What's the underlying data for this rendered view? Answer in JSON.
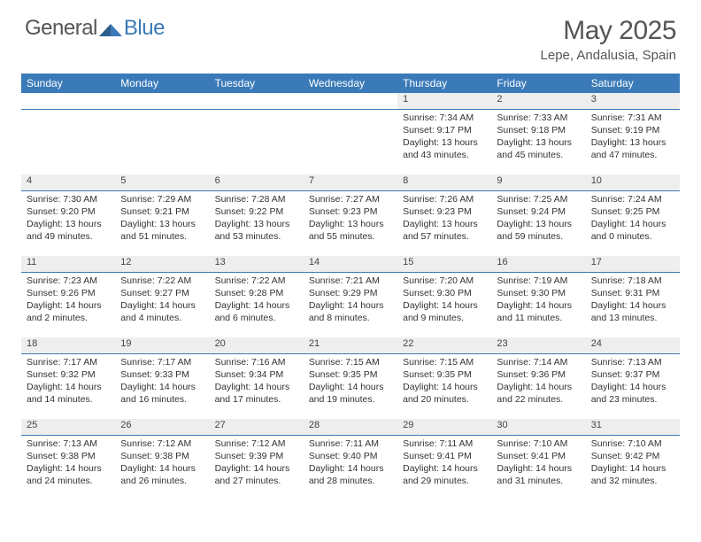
{
  "brand": {
    "part1": "General",
    "part2": "Blue"
  },
  "title": "May 2025",
  "location": "Lepe, Andalusia, Spain",
  "colors": {
    "header_bg": "#3a7ab8",
    "header_text": "#ffffff",
    "daynum_bg": "#eeeeee",
    "divider": "#3a7ab8",
    "body_text": "#333333",
    "title_text": "#555555"
  },
  "weekday_labels": [
    "Sunday",
    "Monday",
    "Tuesday",
    "Wednesday",
    "Thursday",
    "Friday",
    "Saturday"
  ],
  "weeks": [
    [
      {
        "blank": true
      },
      {
        "blank": true
      },
      {
        "blank": true
      },
      {
        "blank": true
      },
      {
        "day": "1",
        "sunrise": "Sunrise: 7:34 AM",
        "sunset": "Sunset: 9:17 PM",
        "daylight": "Daylight: 13 hours and 43 minutes."
      },
      {
        "day": "2",
        "sunrise": "Sunrise: 7:33 AM",
        "sunset": "Sunset: 9:18 PM",
        "daylight": "Daylight: 13 hours and 45 minutes."
      },
      {
        "day": "3",
        "sunrise": "Sunrise: 7:31 AM",
        "sunset": "Sunset: 9:19 PM",
        "daylight": "Daylight: 13 hours and 47 minutes."
      }
    ],
    [
      {
        "day": "4",
        "sunrise": "Sunrise: 7:30 AM",
        "sunset": "Sunset: 9:20 PM",
        "daylight": "Daylight: 13 hours and 49 minutes."
      },
      {
        "day": "5",
        "sunrise": "Sunrise: 7:29 AM",
        "sunset": "Sunset: 9:21 PM",
        "daylight": "Daylight: 13 hours and 51 minutes."
      },
      {
        "day": "6",
        "sunrise": "Sunrise: 7:28 AM",
        "sunset": "Sunset: 9:22 PM",
        "daylight": "Daylight: 13 hours and 53 minutes."
      },
      {
        "day": "7",
        "sunrise": "Sunrise: 7:27 AM",
        "sunset": "Sunset: 9:23 PM",
        "daylight": "Daylight: 13 hours and 55 minutes."
      },
      {
        "day": "8",
        "sunrise": "Sunrise: 7:26 AM",
        "sunset": "Sunset: 9:23 PM",
        "daylight": "Daylight: 13 hours and 57 minutes."
      },
      {
        "day": "9",
        "sunrise": "Sunrise: 7:25 AM",
        "sunset": "Sunset: 9:24 PM",
        "daylight": "Daylight: 13 hours and 59 minutes."
      },
      {
        "day": "10",
        "sunrise": "Sunrise: 7:24 AM",
        "sunset": "Sunset: 9:25 PM",
        "daylight": "Daylight: 14 hours and 0 minutes."
      }
    ],
    [
      {
        "day": "11",
        "sunrise": "Sunrise: 7:23 AM",
        "sunset": "Sunset: 9:26 PM",
        "daylight": "Daylight: 14 hours and 2 minutes."
      },
      {
        "day": "12",
        "sunrise": "Sunrise: 7:22 AM",
        "sunset": "Sunset: 9:27 PM",
        "daylight": "Daylight: 14 hours and 4 minutes."
      },
      {
        "day": "13",
        "sunrise": "Sunrise: 7:22 AM",
        "sunset": "Sunset: 9:28 PM",
        "daylight": "Daylight: 14 hours and 6 minutes."
      },
      {
        "day": "14",
        "sunrise": "Sunrise: 7:21 AM",
        "sunset": "Sunset: 9:29 PM",
        "daylight": "Daylight: 14 hours and 8 minutes."
      },
      {
        "day": "15",
        "sunrise": "Sunrise: 7:20 AM",
        "sunset": "Sunset: 9:30 PM",
        "daylight": "Daylight: 14 hours and 9 minutes."
      },
      {
        "day": "16",
        "sunrise": "Sunrise: 7:19 AM",
        "sunset": "Sunset: 9:30 PM",
        "daylight": "Daylight: 14 hours and 11 minutes."
      },
      {
        "day": "17",
        "sunrise": "Sunrise: 7:18 AM",
        "sunset": "Sunset: 9:31 PM",
        "daylight": "Daylight: 14 hours and 13 minutes."
      }
    ],
    [
      {
        "day": "18",
        "sunrise": "Sunrise: 7:17 AM",
        "sunset": "Sunset: 9:32 PM",
        "daylight": "Daylight: 14 hours and 14 minutes."
      },
      {
        "day": "19",
        "sunrise": "Sunrise: 7:17 AM",
        "sunset": "Sunset: 9:33 PM",
        "daylight": "Daylight: 14 hours and 16 minutes."
      },
      {
        "day": "20",
        "sunrise": "Sunrise: 7:16 AM",
        "sunset": "Sunset: 9:34 PM",
        "daylight": "Daylight: 14 hours and 17 minutes."
      },
      {
        "day": "21",
        "sunrise": "Sunrise: 7:15 AM",
        "sunset": "Sunset: 9:35 PM",
        "daylight": "Daylight: 14 hours and 19 minutes."
      },
      {
        "day": "22",
        "sunrise": "Sunrise: 7:15 AM",
        "sunset": "Sunset: 9:35 PM",
        "daylight": "Daylight: 14 hours and 20 minutes."
      },
      {
        "day": "23",
        "sunrise": "Sunrise: 7:14 AM",
        "sunset": "Sunset: 9:36 PM",
        "daylight": "Daylight: 14 hours and 22 minutes."
      },
      {
        "day": "24",
        "sunrise": "Sunrise: 7:13 AM",
        "sunset": "Sunset: 9:37 PM",
        "daylight": "Daylight: 14 hours and 23 minutes."
      }
    ],
    [
      {
        "day": "25",
        "sunrise": "Sunrise: 7:13 AM",
        "sunset": "Sunset: 9:38 PM",
        "daylight": "Daylight: 14 hours and 24 minutes."
      },
      {
        "day": "26",
        "sunrise": "Sunrise: 7:12 AM",
        "sunset": "Sunset: 9:38 PM",
        "daylight": "Daylight: 14 hours and 26 minutes."
      },
      {
        "day": "27",
        "sunrise": "Sunrise: 7:12 AM",
        "sunset": "Sunset: 9:39 PM",
        "daylight": "Daylight: 14 hours and 27 minutes."
      },
      {
        "day": "28",
        "sunrise": "Sunrise: 7:11 AM",
        "sunset": "Sunset: 9:40 PM",
        "daylight": "Daylight: 14 hours and 28 minutes."
      },
      {
        "day": "29",
        "sunrise": "Sunrise: 7:11 AM",
        "sunset": "Sunset: 9:41 PM",
        "daylight": "Daylight: 14 hours and 29 minutes."
      },
      {
        "day": "30",
        "sunrise": "Sunrise: 7:10 AM",
        "sunset": "Sunset: 9:41 PM",
        "daylight": "Daylight: 14 hours and 31 minutes."
      },
      {
        "day": "31",
        "sunrise": "Sunrise: 7:10 AM",
        "sunset": "Sunset: 9:42 PM",
        "daylight": "Daylight: 14 hours and 32 minutes."
      }
    ]
  ]
}
